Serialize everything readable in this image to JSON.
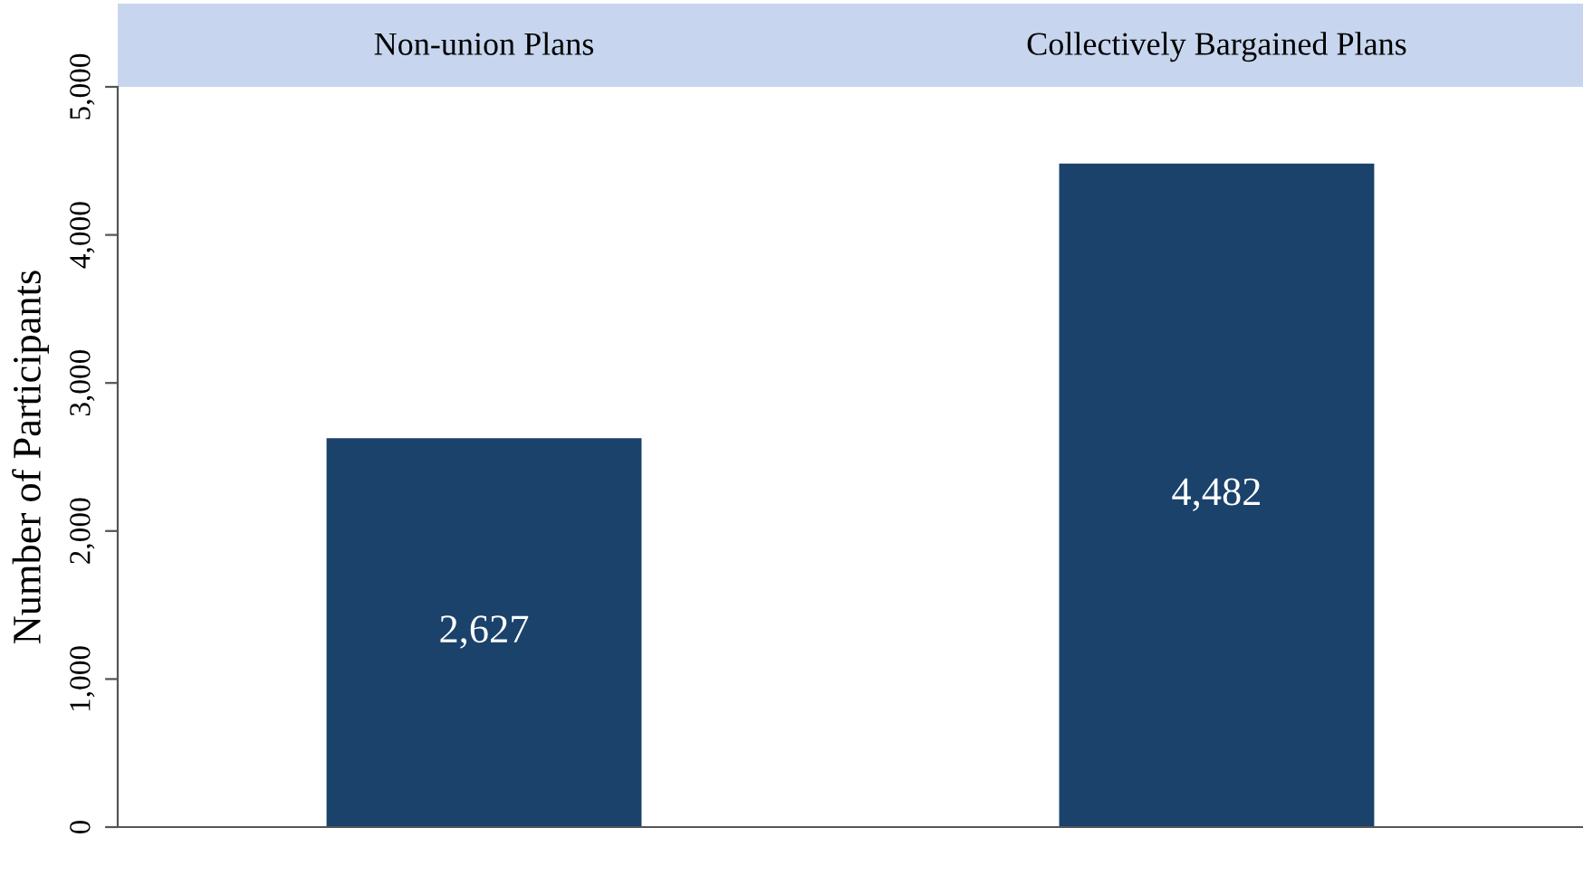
{
  "chart_data": {
    "type": "bar",
    "ylabel": "Number of Participants",
    "categories": [
      "Non-union Plans",
      "Collectively Bargained Plans"
    ],
    "values": [
      2627,
      4482
    ],
    "color": "#1a426b",
    "ylim": [
      0,
      5000
    ],
    "yticks": [
      {
        "value": 0,
        "label": "0"
      },
      {
        "value": 1000,
        "label": "1,000"
      },
      {
        "value": 2000,
        "label": "2,000"
      },
      {
        "value": 3000,
        "label": "3,000"
      },
      {
        "value": 4000,
        "label": "4,000"
      },
      {
        "value": 5000,
        "label": "5,000"
      }
    ],
    "value_labels": [
      "2,627",
      "4,482"
    ],
    "grid": false,
    "legend": false
  }
}
